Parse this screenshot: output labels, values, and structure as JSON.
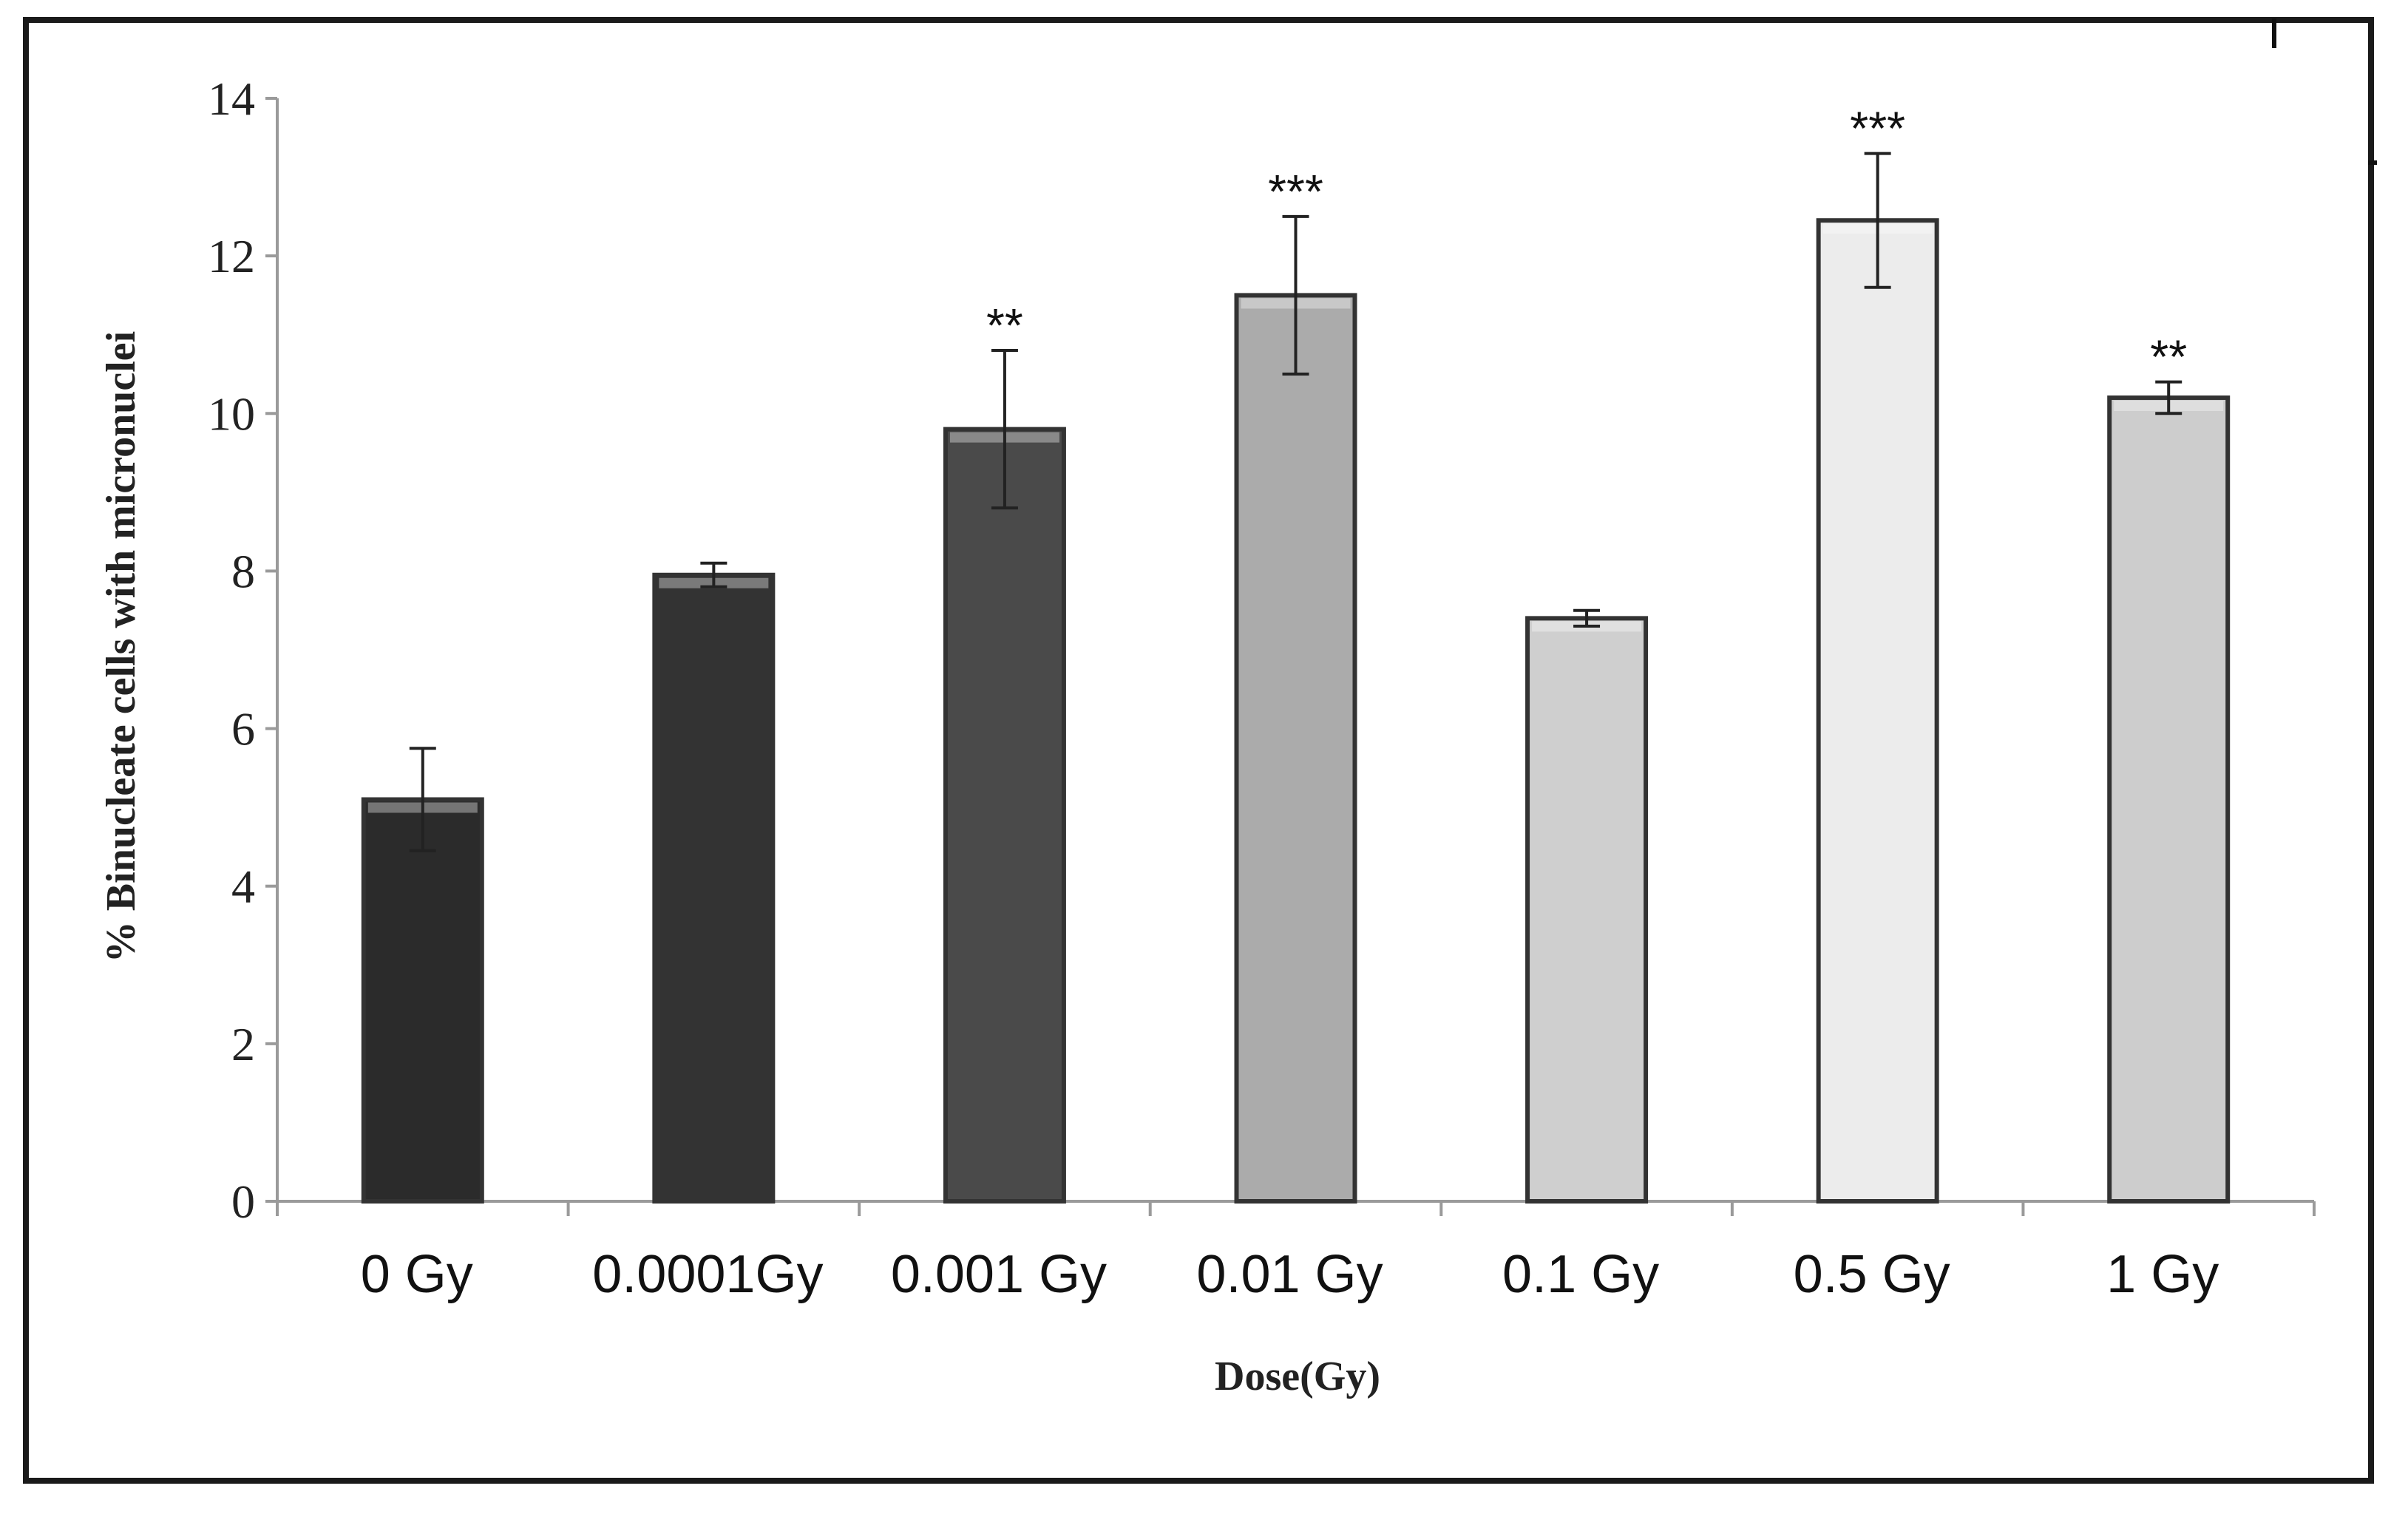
{
  "chart_data": {
    "type": "bar",
    "title": "",
    "xlabel": "Dose(Gy)",
    "ylabel": "% Binucleate cells with micronuclei",
    "ylim": [
      0,
      14
    ],
    "yticks": [
      "0",
      "2",
      "4",
      "6",
      "8",
      "10",
      "12",
      "14"
    ],
    "categories": [
      "0 Gy",
      "0.0001Gy",
      "0.001 Gy",
      "0.01 Gy",
      "0.1 Gy",
      "0.5 Gy",
      "1 Gy"
    ],
    "values": [
      5.1,
      7.95,
      9.8,
      11.5,
      7.4,
      12.45,
      10.2
    ],
    "errors": [
      0.65,
      0.15,
      1.0,
      1.0,
      0.1,
      0.85,
      0.2
    ],
    "significance": [
      "",
      "",
      "**",
      "***",
      "",
      "***",
      "**"
    ],
    "bar_colors": [
      "#2b2b2b",
      "#333333",
      "#4a4a4a",
      "#ababab",
      "#cfcfcf",
      "#ececec",
      "#cdcdcd"
    ],
    "grid": false,
    "legend": "none"
  }
}
